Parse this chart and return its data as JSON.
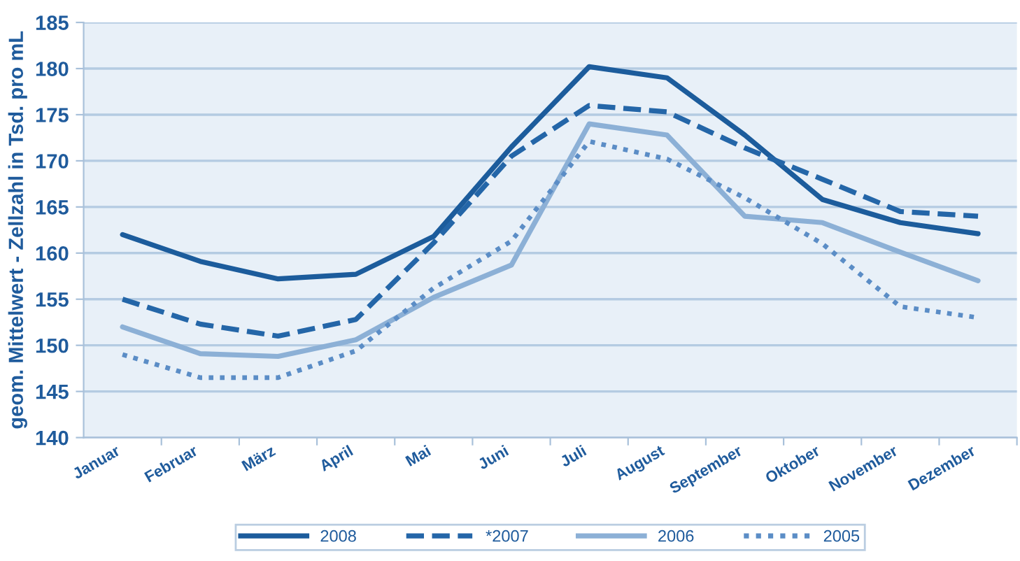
{
  "chart_data": {
    "type": "line",
    "ylabel": "geom. Mittelwert - Zellzahl in Tsd. pro mL",
    "categories": [
      "Januar",
      "Februar",
      "März",
      "April",
      "Mai",
      "Juni",
      "Juli",
      "August",
      "September",
      "Oktober",
      "November",
      "Dezember"
    ],
    "series": [
      {
        "name": "2008",
        "color": "#1c5c9c",
        "line_style": "solid",
        "values": [
          162,
          159.1,
          157.2,
          157.7,
          161.8,
          171.5,
          180.2,
          179,
          172.8,
          165.8,
          163.3,
          162.1
        ]
      },
      {
        "name": "*2007",
        "color": "#2466a8",
        "line_style": "dashed",
        "values": [
          155,
          152.3,
          151,
          152.8,
          161.1,
          170.5,
          176,
          175.3,
          171.4,
          168,
          164.5,
          164
        ]
      },
      {
        "name": "2006",
        "color": "#8cb0d6",
        "line_style": "solid",
        "values": [
          152,
          149.1,
          148.8,
          150.6,
          155.2,
          158.7,
          174,
          172.8,
          164,
          163.3,
          160.1,
          157
        ]
      },
      {
        "name": "2005",
        "color": "#5b8dc6",
        "line_style": "dotted",
        "values": [
          149,
          146.5,
          146.5,
          149.4,
          156.2,
          161.3,
          172.1,
          170.2,
          166,
          161,
          154.2,
          153
        ]
      }
    ],
    "ylim": [
      140,
      185
    ],
    "yticks": [
      140,
      145,
      150,
      155,
      160,
      165,
      170,
      175,
      180,
      185
    ],
    "grid": "y",
    "legend": "bottom",
    "marker": "none"
  }
}
